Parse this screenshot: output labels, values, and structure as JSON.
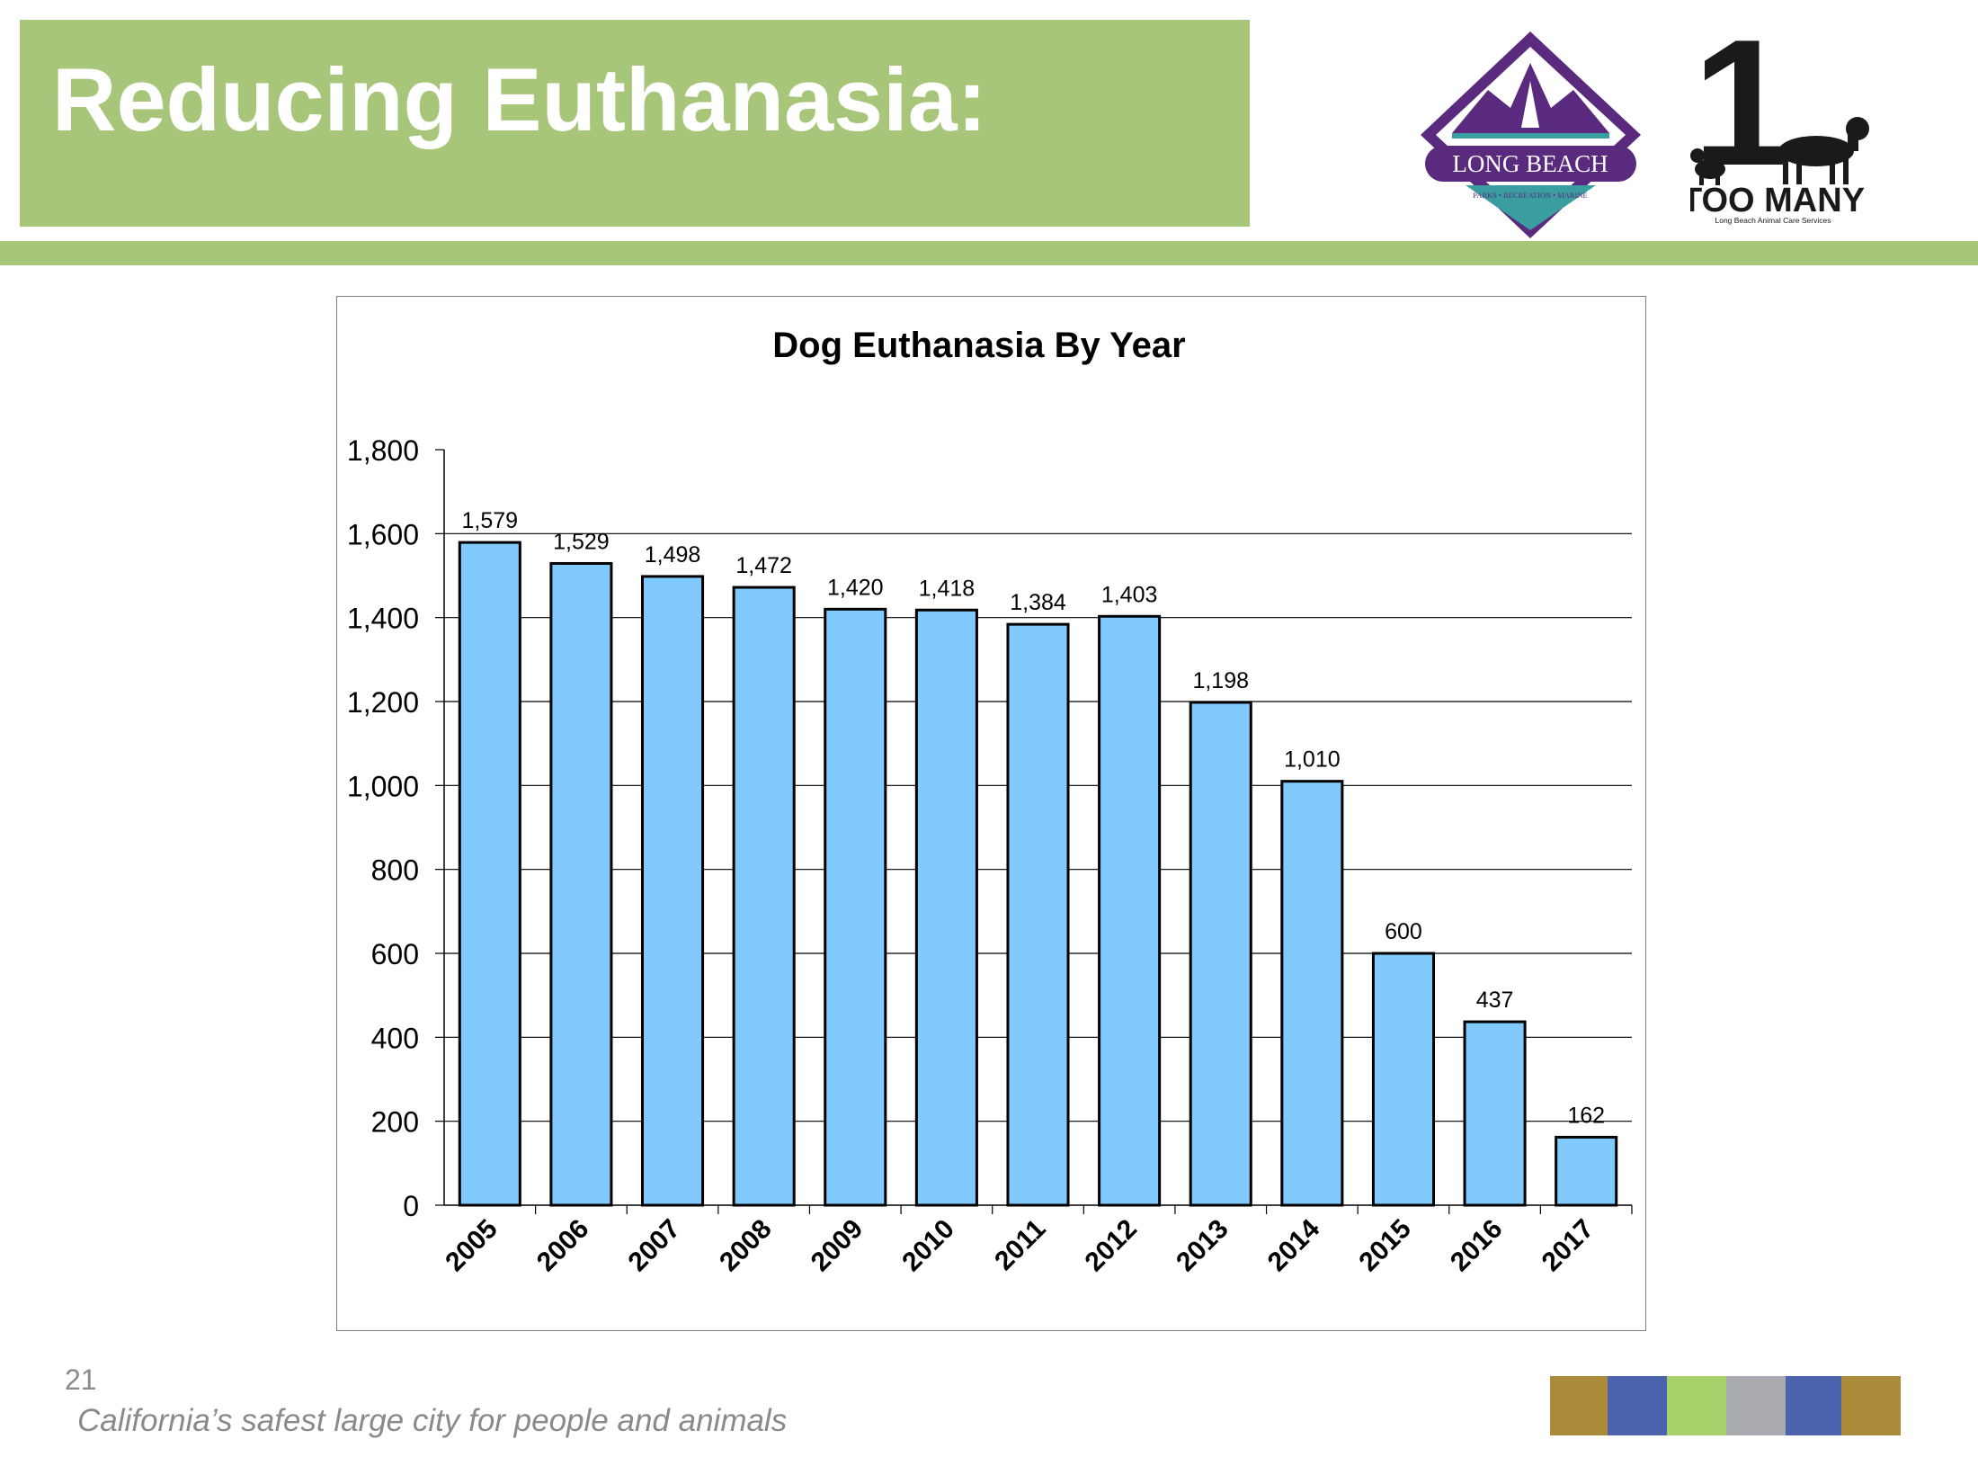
{
  "slide": {
    "title": "Reducing Euthanasia:",
    "page_number": "21",
    "tagline": "California’s safest large city for people and animals"
  },
  "logos": {
    "long_beach": {
      "name": "LONG BEACH",
      "subtitle": "PARKS • RECREATION • MARINE"
    },
    "one_too_many": {
      "numeral": "1",
      "name": "TOO MANY",
      "subtitle": "Long Beach Animal Care Services"
    }
  },
  "colors": {
    "accent_green": "#a7c67a",
    "bar_fill": "#80caff",
    "bar_stroke": "#000000",
    "logo_purple": "#5a2a7e",
    "logo_teal": "#3a9ea0",
    "strip": [
      "#a98b3a",
      "#4a63ac",
      "#a7d16b",
      "#a9aab0",
      "#4a63ac",
      "#a98b3a"
    ]
  },
  "chart_data": {
    "type": "bar",
    "title": "Dog Euthanasia By Year",
    "xlabel": "",
    "ylabel": "",
    "categories": [
      "2005",
      "2006",
      "2007",
      "2008",
      "2009",
      "2010",
      "2011",
      "2012",
      "2013",
      "2014",
      "2015",
      "2016",
      "2017"
    ],
    "values": [
      1579,
      1529,
      1498,
      1472,
      1420,
      1418,
      1384,
      1403,
      1198,
      1010,
      600,
      437,
      162
    ],
    "value_labels": [
      "1,579",
      "1,529",
      "1,498",
      "1,472",
      "1,420",
      "1,418",
      "1,384",
      "1,403",
      "1,198",
      "1,010",
      "600",
      "437",
      "162"
    ],
    "ylim": [
      0,
      1800
    ],
    "yticks": [
      0,
      200,
      400,
      600,
      800,
      1000,
      1200,
      1400,
      1600,
      1800
    ],
    "ytick_labels": [
      "0",
      "200",
      "400",
      "600",
      "800",
      "1,000",
      "1,200",
      "1,400",
      "1,600",
      "1,800"
    ],
    "grid": true,
    "legend": "none"
  }
}
